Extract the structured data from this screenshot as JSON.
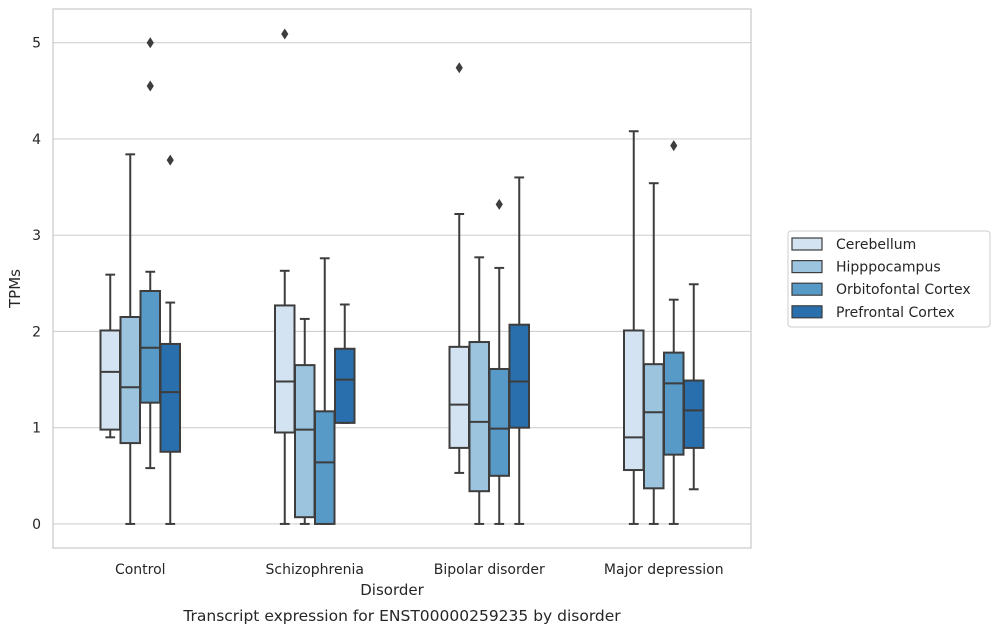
{
  "chart_data": {
    "type": "box",
    "title": "",
    "caption": "Transcript expression for ENST00000259235 by disorder",
    "xlabel": "Disorder",
    "ylabel": "TPMs",
    "ylim": [
      -0.25,
      5.35
    ],
    "yticks": [
      0,
      1,
      2,
      3,
      4,
      5
    ],
    "grid": "horizontal",
    "legend_placement": "right",
    "categories": [
      "Control",
      "Schizophrenia",
      "Bipolar disorder",
      "Major depression"
    ],
    "series": [
      {
        "name": "Cerebellum",
        "color": "#d3e3f2",
        "boxes": [
          {
            "whislo": 0.9,
            "q1": 0.98,
            "med": 1.58,
            "q3": 2.01,
            "whishi": 2.59,
            "fliers": []
          },
          {
            "whislo": 0.0,
            "q1": 0.95,
            "med": 1.48,
            "q3": 2.27,
            "whishi": 2.63,
            "fliers": [
              5.09
            ]
          },
          {
            "whislo": 0.53,
            "q1": 0.79,
            "med": 1.24,
            "q3": 1.84,
            "whishi": 3.22,
            "fliers": [
              4.74
            ]
          },
          {
            "whislo": 0.0,
            "q1": 0.56,
            "med": 0.9,
            "q3": 2.01,
            "whishi": 4.08,
            "fliers": []
          }
        ]
      },
      {
        "name": "Hipppocampus",
        "color": "#9dc4de",
        "boxes": [
          {
            "whislo": 0.0,
            "q1": 0.84,
            "med": 1.42,
            "q3": 2.15,
            "whishi": 3.84,
            "fliers": []
          },
          {
            "whislo": 0.0,
            "q1": 0.07,
            "med": 0.98,
            "q3": 1.65,
            "whishi": 2.13,
            "fliers": []
          },
          {
            "whislo": 0.0,
            "q1": 0.34,
            "med": 1.06,
            "q3": 1.89,
            "whishi": 2.77,
            "fliers": []
          },
          {
            "whislo": 0.0,
            "q1": 0.37,
            "med": 1.16,
            "q3": 1.66,
            "whishi": 3.54,
            "fliers": []
          }
        ]
      },
      {
        "name": "Orbitofontal Cortex",
        "color": "#5799c7",
        "boxes": [
          {
            "whislo": 0.58,
            "q1": 1.26,
            "med": 1.83,
            "q3": 2.42,
            "whishi": 2.62,
            "fliers": [
              4.55,
              5.0
            ]
          },
          {
            "whislo": 0.0,
            "q1": 0.0,
            "med": 0.64,
            "q3": 1.17,
            "whishi": 2.76,
            "fliers": []
          },
          {
            "whislo": 0.0,
            "q1": 0.5,
            "med": 0.99,
            "q3": 1.61,
            "whishi": 2.66,
            "fliers": [
              3.32
            ]
          },
          {
            "whislo": 0.0,
            "q1": 0.72,
            "med": 1.46,
            "q3": 1.78,
            "whishi": 2.33,
            "fliers": [
              3.93
            ]
          }
        ]
      },
      {
        "name": "Prefrontal Cortex",
        "color": "#2a6fad",
        "boxes": [
          {
            "whislo": 0.0,
            "q1": 0.75,
            "med": 1.37,
            "q3": 1.87,
            "whishi": 2.3,
            "fliers": [
              3.78
            ]
          },
          {
            "whislo": 1.05,
            "q1": 1.05,
            "med": 1.5,
            "q3": 1.82,
            "whishi": 2.28,
            "fliers": []
          },
          {
            "whislo": 0.0,
            "q1": 1.0,
            "med": 1.48,
            "q3": 2.07,
            "whishi": 3.6,
            "fliers": []
          },
          {
            "whislo": 0.36,
            "q1": 0.79,
            "med": 1.18,
            "q3": 1.49,
            "whishi": 2.49,
            "fliers": []
          }
        ]
      }
    ]
  }
}
